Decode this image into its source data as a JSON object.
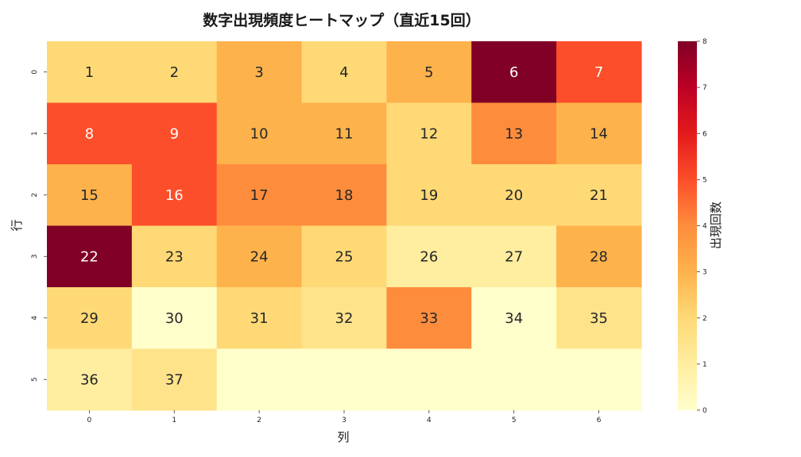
{
  "chart_data": {
    "type": "heatmap",
    "title": "数字出現頻度ヒートマップ（直近15回）",
    "xlabel": "列",
    "ylabel": "行",
    "x_ticks": [
      "0",
      "1",
      "2",
      "3",
      "4",
      "5",
      "6"
    ],
    "y_ticks": [
      "0",
      "1",
      "2",
      "3",
      "4",
      "5"
    ],
    "colorbar_label": "出現回数",
    "colorbar_ticks": [
      "0",
      "1",
      "2",
      "3",
      "4",
      "5",
      "6",
      "7",
      "8"
    ],
    "vmin": 0,
    "vmax": 8,
    "colormap": "YlOrRd",
    "values": [
      [
        2,
        2,
        3,
        2,
        3,
        8,
        5
      ],
      [
        5,
        5,
        3,
        3,
        2,
        4,
        3
      ],
      [
        3,
        5,
        4,
        4,
        2,
        2,
        2
      ],
      [
        8,
        2,
        3,
        2,
        1,
        1,
        3
      ],
      [
        2,
        0,
        2,
        1.5,
        4,
        0,
        1.5
      ],
      [
        1,
        1.5,
        0,
        0,
        0,
        0,
        0
      ]
    ],
    "annotations": [
      [
        "1",
        "2",
        "3",
        "4",
        "5",
        "6",
        "7"
      ],
      [
        "8",
        "9",
        "10",
        "11",
        "12",
        "13",
        "14"
      ],
      [
        "15",
        "16",
        "17",
        "18",
        "19",
        "20",
        "21"
      ],
      [
        "22",
        "23",
        "24",
        "25",
        "26",
        "27",
        "28"
      ],
      [
        "29",
        "30",
        "31",
        "32",
        "33",
        "34",
        "35"
      ],
      [
        "36",
        "37",
        "",
        "",
        "",
        "",
        ""
      ]
    ]
  }
}
